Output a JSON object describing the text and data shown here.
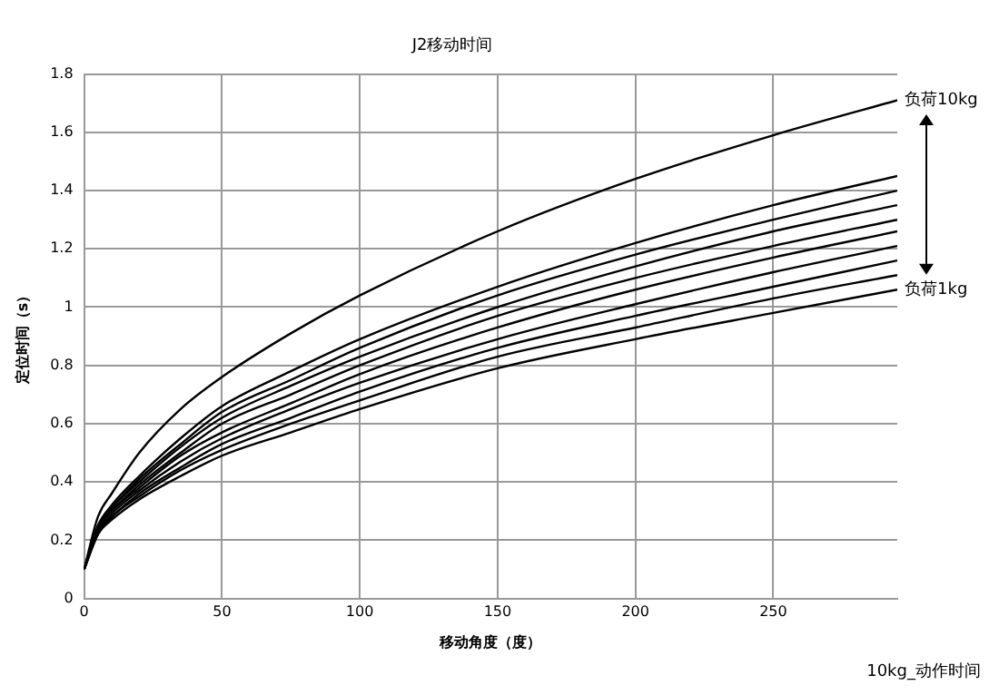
{
  "chart_data": {
    "type": "line",
    "title": "J2移动时间",
    "xlabel": "移动角度（度）",
    "ylabel": "定位时间（s）",
    "x": [
      0,
      5,
      10,
      20,
      35,
      50,
      75,
      100,
      150,
      200,
      250,
      295
    ],
    "xlim": [
      0,
      295
    ],
    "xticks": [
      0,
      50,
      100,
      150,
      200,
      250
    ],
    "ylim": [
      0,
      1.8
    ],
    "yticks": [
      0,
      0.2,
      0.4,
      0.6,
      0.8,
      1,
      1.2,
      1.4,
      1.6,
      1.8
    ],
    "grid": true,
    "legend": false,
    "marker": "none",
    "line_style": "solid",
    "series": [
      {
        "color": "#000000",
        "values": [
          0.1,
          0.22,
          0.27,
          0.34,
          0.42,
          0.49,
          0.57,
          0.65,
          0.79,
          0.89,
          0.98,
          1.06
        ]
      },
      {
        "color": "#000000",
        "values": [
          0.1,
          0.22,
          0.28,
          0.35,
          0.44,
          0.51,
          0.6,
          0.68,
          0.83,
          0.93,
          1.03,
          1.11
        ]
      },
      {
        "color": "#000000",
        "values": [
          0.1,
          0.23,
          0.28,
          0.36,
          0.45,
          0.53,
          0.62,
          0.71,
          0.86,
          0.97,
          1.07,
          1.16
        ]
      },
      {
        "color": "#000000",
        "values": [
          0.1,
          0.23,
          0.29,
          0.37,
          0.47,
          0.55,
          0.65,
          0.74,
          0.89,
          1.01,
          1.12,
          1.21
        ]
      },
      {
        "color": "#000000",
        "values": [
          0.1,
          0.24,
          0.3,
          0.38,
          0.49,
          0.57,
          0.67,
          0.77,
          0.93,
          1.06,
          1.17,
          1.26
        ]
      },
      {
        "color": "#000000",
        "values": [
          0.1,
          0.24,
          0.3,
          0.39,
          0.5,
          0.6,
          0.7,
          0.8,
          0.97,
          1.1,
          1.21,
          1.3
        ]
      },
      {
        "color": "#000000",
        "values": [
          0.1,
          0.24,
          0.31,
          0.4,
          0.52,
          0.62,
          0.73,
          0.83,
          1.0,
          1.14,
          1.26,
          1.35
        ]
      },
      {
        "color": "#000000",
        "values": [
          0.1,
          0.25,
          0.31,
          0.41,
          0.53,
          0.64,
          0.75,
          0.86,
          1.04,
          1.18,
          1.3,
          1.4
        ]
      },
      {
        "color": "#000000",
        "values": [
          0.1,
          0.25,
          0.32,
          0.42,
          0.55,
          0.66,
          0.78,
          0.89,
          1.07,
          1.22,
          1.35,
          1.45
        ]
      },
      {
        "color": "#000000",
        "values": [
          0.1,
          0.28,
          0.36,
          0.5,
          0.65,
          0.76,
          0.91,
          1.04,
          1.26,
          1.44,
          1.59,
          1.71
        ]
      }
    ],
    "annotations": [
      {
        "text": "负荷10kg",
        "x": 295,
        "y": 1.71
      },
      {
        "text": "负荷1kg",
        "x": 295,
        "y": 1.06
      },
      "10kg_动作时间"
    ]
  }
}
